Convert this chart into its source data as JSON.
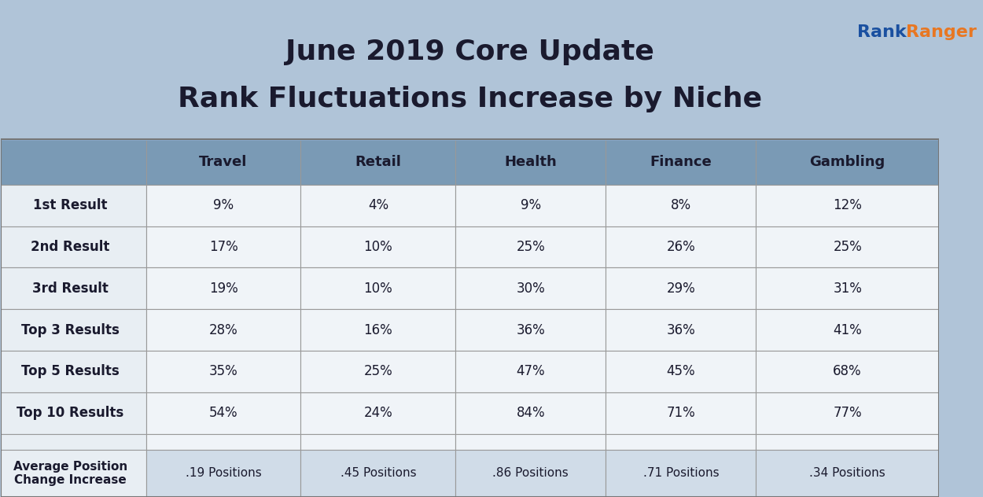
{
  "title_line1": "June 2019 Core Update",
  "title_line2": "Rank Fluctuations Increase by Niche",
  "columns": [
    "",
    "Travel",
    "Retail",
    "Health",
    "Finance",
    "Gambling"
  ],
  "rows": [
    [
      "1st Result",
      "9%",
      "4%",
      "9%",
      "8%",
      "12%"
    ],
    [
      "2nd Result",
      "17%",
      "10%",
      "25%",
      "26%",
      "25%"
    ],
    [
      "3rd Result",
      "19%",
      "10%",
      "30%",
      "29%",
      "31%"
    ],
    [
      "Top 3 Results",
      "28%",
      "16%",
      "36%",
      "36%",
      "41%"
    ],
    [
      "Top 5 Results",
      "35%",
      "25%",
      "47%",
      "45%",
      "68%"
    ],
    [
      "Top 10 Results",
      "54%",
      "24%",
      "84%",
      "71%",
      "77%"
    ]
  ],
  "avg_row_label": "Average Position\nChange Increase",
  "avg_row_values": [
    ".19 Positions",
    ".45 Positions",
    ".86 Positions",
    ".71 Positions",
    ".34 Positions"
  ],
  "bg_color": "#b0c4d8",
  "header_bg": "#7a9ab5",
  "header_text": "#1a1a2e",
  "row_label_bg": "#e8eef3",
  "cell_bg_light": "#f0f4f8",
  "cell_bg_white": "#ffffff",
  "avg_label_bg": "#e8eef3",
  "avg_cell_bg": "#d0dce8",
  "separator_color": "#8aabcc",
  "line_color": "#999999",
  "title_color": "#1a1a2e",
  "rank_blue": "#1a50a0",
  "rank_orange": "#e87722",
  "logo_rank": "Rank",
  "logo_ranger": "Ranger"
}
